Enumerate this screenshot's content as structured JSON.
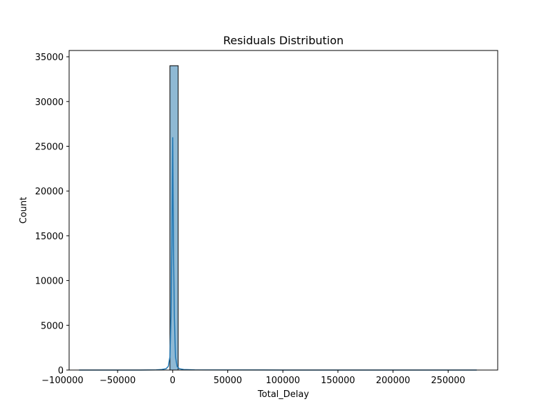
{
  "chart_data": {
    "type": "histogram",
    "title": "Residuals Distribution",
    "xlabel": "Total_Delay",
    "ylabel": "Count",
    "xlim": [
      -94000,
      295000
    ],
    "ylim": [
      0,
      35700
    ],
    "xticks": [
      -100000,
      -50000,
      0,
      50000,
      100000,
      150000,
      200000,
      250000
    ],
    "xtick_labels": [
      "−100000",
      "−50000",
      "0",
      "50000",
      "100000",
      "150000",
      "200000",
      "250000"
    ],
    "yticks": [
      0,
      5000,
      10000,
      15000,
      20000,
      25000,
      30000,
      35000
    ],
    "ytick_labels": [
      "0",
      "5000",
      "10000",
      "15000",
      "20000",
      "25000",
      "30000",
      "35000"
    ],
    "bins": [
      {
        "x0": -2500,
        "x1": 5000,
        "count": 34000
      }
    ],
    "kde": {
      "x": [
        -85000,
        -30000,
        -15000,
        -10000,
        -6000,
        -4000,
        -2500,
        -1500,
        -700,
        0,
        700,
        1500,
        2500,
        4000,
        6000,
        10000,
        20000,
        100000,
        200000,
        276000
      ],
      "y": [
        0,
        5,
        20,
        60,
        150,
        400,
        1500,
        6000,
        14000,
        26000,
        14000,
        6000,
        1500,
        400,
        150,
        60,
        20,
        5,
        2,
        0
      ]
    },
    "colors": {
      "bar_fill": "#8fb9d4",
      "bar_edge": "#000000",
      "kde_line": "#1f77b4"
    }
  }
}
